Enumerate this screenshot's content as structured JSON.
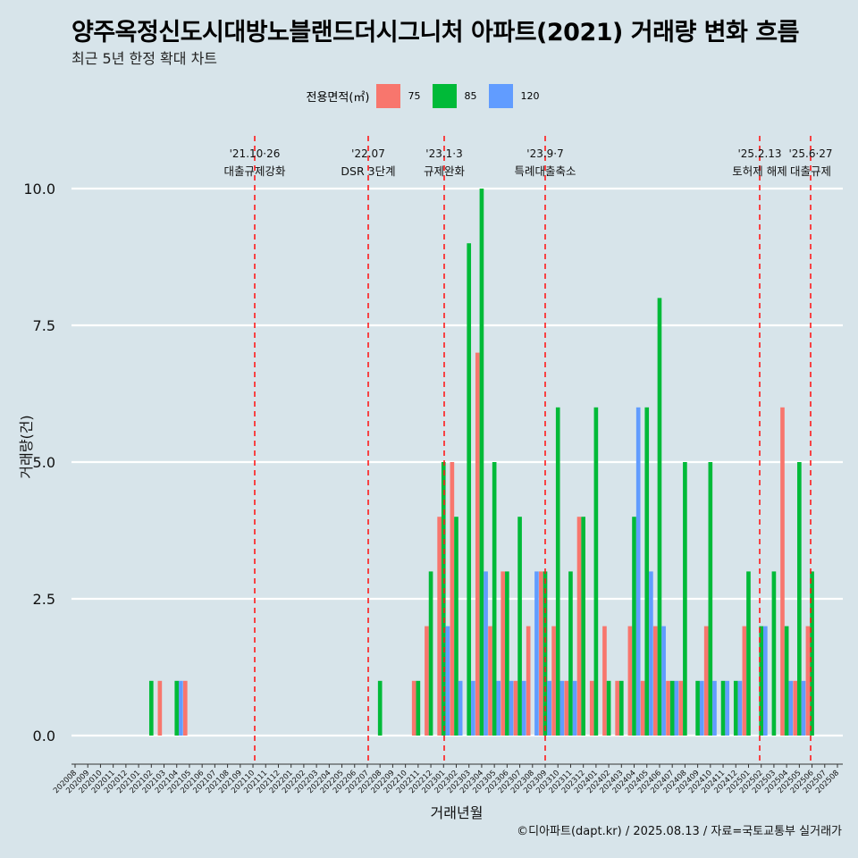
{
  "title": "양주옥정신도시대방노블랜드더시그니처 아파트(2021) 거래량 변화 흐름",
  "subtitle": "최근 5년 한정 확대 차트",
  "caption": "©디아파트(dapt.kr) / 2025.08.13 / 자료=국토교통부 실거래가",
  "legend": {
    "title": "전용면적(㎡)",
    "items": [
      {
        "label": "75",
        "color": "#f8766d"
      },
      {
        "label": "85",
        "color": "#00ba38"
      },
      {
        "label": "120",
        "color": "#619cff"
      }
    ]
  },
  "chart_data": {
    "type": "bar",
    "xlabel": "거래년월",
    "ylabel": "거래량(건)",
    "ylim": [
      0,
      10
    ],
    "y_ticks": [
      "0.0",
      "2.5",
      "5.0",
      "7.5",
      "10.0"
    ],
    "categories": [
      "202008",
      "202009",
      "202010",
      "202011",
      "202012",
      "202101",
      "202102",
      "202103",
      "202104",
      "202105",
      "202106",
      "202107",
      "202108",
      "202109",
      "202110",
      "202111",
      "202112",
      "202201",
      "202202",
      "202203",
      "202204",
      "202205",
      "202206",
      "202207",
      "202208",
      "202209",
      "202210",
      "202211",
      "202212",
      "202301",
      "202302",
      "202303",
      "202304",
      "202305",
      "202306",
      "202307",
      "202308",
      "202309",
      "202310",
      "202311",
      "202312",
      "202401",
      "202402",
      "202403",
      "202404",
      "202405",
      "202406",
      "202407",
      "202408",
      "202409",
      "202410",
      "202411",
      "202412",
      "202501",
      "202502",
      "202503",
      "202504",
      "202505",
      "202506",
      "202507",
      "202508"
    ],
    "series": [
      {
        "name": "75",
        "values": [
          0,
          0,
          0,
          0,
          0,
          0,
          0,
          1,
          0,
          1,
          0,
          0,
          0,
          0,
          0,
          0,
          0,
          0,
          0,
          0,
          0,
          0,
          0,
          0,
          0,
          0,
          0,
          1,
          2,
          4,
          5,
          0,
          7,
          2,
          3,
          1,
          2,
          3,
          2,
          1,
          4,
          1,
          2,
          1,
          2,
          1,
          2,
          1,
          1,
          0,
          2,
          0,
          0,
          2,
          0,
          0,
          6,
          1,
          2,
          0,
          0
        ]
      },
      {
        "name": "85",
        "values": [
          0,
          0,
          0,
          0,
          0,
          0,
          1,
          0,
          1,
          0,
          0,
          0,
          0,
          0,
          0,
          0,
          0,
          0,
          0,
          0,
          0,
          0,
          0,
          0,
          1,
          0,
          0,
          1,
          3,
          5,
          4,
          9,
          10,
          5,
          3,
          4,
          0,
          3,
          6,
          3,
          4,
          6,
          1,
          1,
          4,
          6,
          8,
          1,
          5,
          1,
          5,
          1,
          1,
          3,
          2,
          3,
          2,
          5,
          3,
          0,
          0
        ]
      },
      {
        "name": "120",
        "values": [
          0,
          0,
          0,
          0,
          0,
          0,
          0,
          0,
          1,
          0,
          0,
          0,
          0,
          0,
          0,
          0,
          0,
          0,
          0,
          0,
          0,
          0,
          0,
          0,
          0,
          0,
          0,
          0,
          0,
          2,
          1,
          1,
          3,
          1,
          1,
          1,
          3,
          1,
          1,
          1,
          0,
          0,
          0,
          0,
          6,
          3,
          2,
          1,
          0,
          1,
          1,
          1,
          1,
          0,
          2,
          0,
          1,
          1,
          0,
          0,
          0
        ]
      }
    ],
    "events": [
      {
        "month": "202111",
        "date": "'21.10·26",
        "label": "대출규제강화"
      },
      {
        "month": "202207",
        "date": "'22.07",
        "label": "DSR 3단계"
      },
      {
        "month": "202301",
        "date": "'23.1·3",
        "label": "규제완화"
      },
      {
        "month": "202309",
        "date": "'23.9·7",
        "label": "특례대출축소"
      },
      {
        "month": "202502",
        "date": "'25.2.13",
        "label": "토허제 해제"
      },
      {
        "month": "202506",
        "date": "'25.6·27",
        "label": "대출규제"
      }
    ],
    "grid": true,
    "legend_position": "top"
  }
}
